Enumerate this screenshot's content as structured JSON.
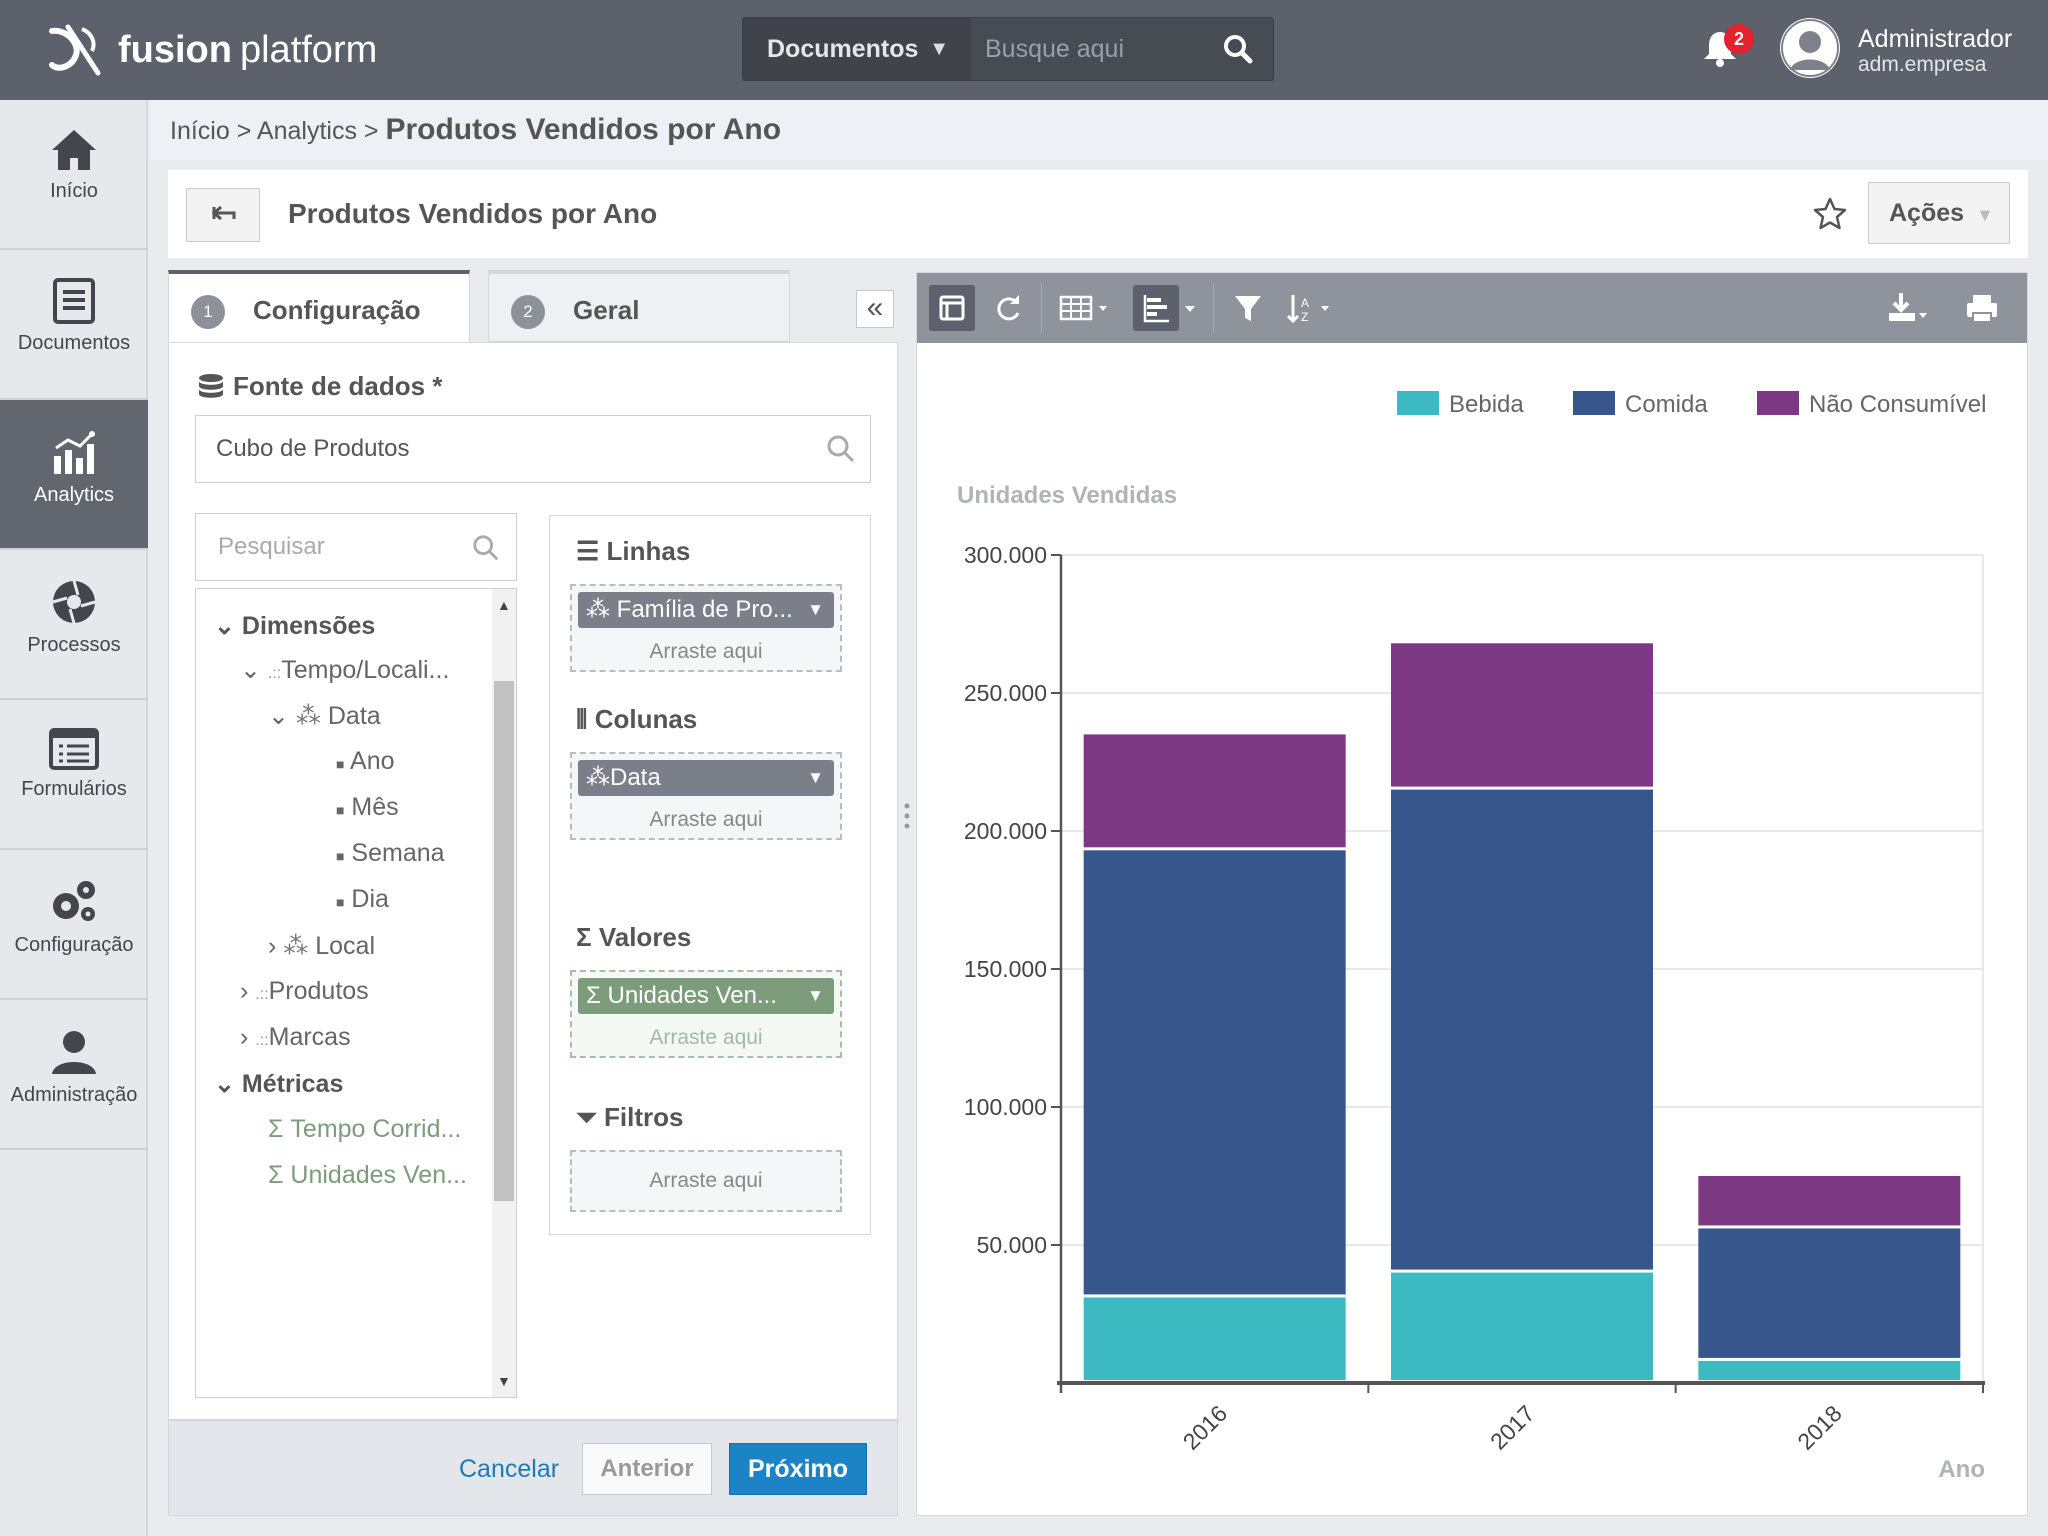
{
  "topbar": {
    "brand_bold": "fusion",
    "brand_light": "platform",
    "search_scope": "Documentos",
    "search_placeholder": "Busque aqui",
    "notifications_count": "2",
    "user_name": "Administrador",
    "user_account": "adm.empresa"
  },
  "sidebar": {
    "items": [
      {
        "label": "Início",
        "icon": "home-icon"
      },
      {
        "label": "Documentos",
        "icon": "document-icon"
      },
      {
        "label": "Analytics",
        "icon": "analytics-icon",
        "active": true
      },
      {
        "label": "Processos",
        "icon": "process-icon"
      },
      {
        "label": "Formulários",
        "icon": "form-icon"
      },
      {
        "label": "Configuração",
        "icon": "gears-icon"
      },
      {
        "label": "Administração",
        "icon": "user-icon"
      }
    ]
  },
  "breadcrumb": {
    "home": "Início",
    "sep": ">",
    "section": "Analytics",
    "current": "Produtos Vendidos por Ano"
  },
  "header": {
    "title": "Produtos Vendidos por Ano",
    "actions_label": "Ações"
  },
  "wizard": {
    "tabs": [
      {
        "num": "1",
        "label": "Configuração"
      },
      {
        "num": "2",
        "label": "Geral"
      }
    ],
    "datasource_label": "Fonte de dados *",
    "datasource_value": "Cubo de Produtos",
    "tree_search_placeholder": "Pesquisar",
    "tree": {
      "dimensions": "Dimensões",
      "tempo": "Tempo/Locali...",
      "data": "Data",
      "ano": "Ano",
      "mes": "Mês",
      "semana": "Semana",
      "dia": "Dia",
      "local": "Local",
      "produtos": "Produtos",
      "marcas": "Marcas",
      "metrics": "Métricas",
      "metric1": "Tempo Corrid...",
      "metric2": "Unidades Ven..."
    },
    "fields": {
      "rows_label": "Linhas",
      "rows_pill": "Família de Pro...",
      "columns_label": "Colunas",
      "columns_pill": "Data",
      "values_label": "Valores",
      "values_pill": "Unidades Ven...",
      "filters_label": "Filtros",
      "drop_hint": "Arraste aqui"
    },
    "footer": {
      "cancel": "Cancelar",
      "previous": "Anterior",
      "next": "Próximo"
    }
  },
  "chart_data": {
    "type": "bar",
    "stacked": true,
    "categories": [
      "2016",
      "2017",
      "2018"
    ],
    "series": [
      {
        "name": "Bebida",
        "color": "#3db9c1",
        "values": [
          31000,
          40000,
          8000
        ]
      },
      {
        "name": "Comida",
        "color": "#36568c",
        "values": [
          162000,
          175000,
          48000
        ]
      },
      {
        "name": "Não Consumível",
        "color": "#7d3884",
        "values": [
          42000,
          53000,
          19000
        ]
      }
    ],
    "ylabel": "Unidades Vendidas",
    "xlabel": "Ano",
    "ylim": [
      0,
      300000
    ],
    "yticks": [
      "300.000",
      "250.000",
      "200.000",
      "150.000",
      "100.000",
      "50.000"
    ],
    "ytick_values": [
      300000,
      250000,
      200000,
      150000,
      100000,
      50000
    ],
    "legend_position": "top-right",
    "grid": true
  }
}
